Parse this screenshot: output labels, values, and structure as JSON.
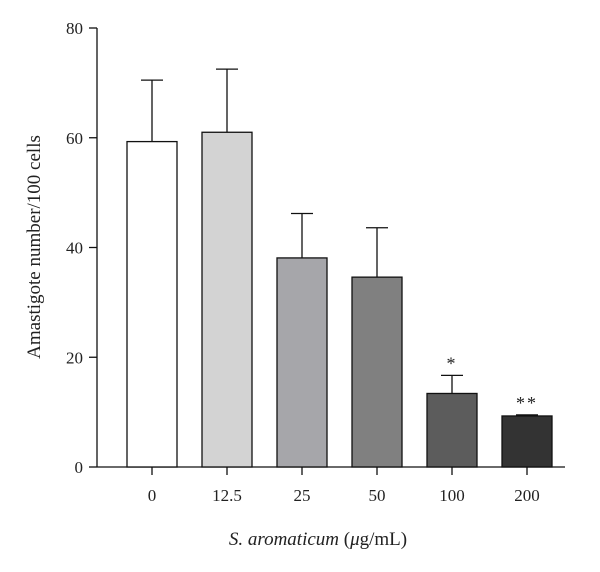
{
  "chart_data": {
    "type": "bar",
    "categories": [
      "0",
      "12.5",
      "25",
      "50",
      "100",
      "200"
    ],
    "values": [
      59.3,
      61.0,
      38.1,
      34.6,
      13.4,
      9.3
    ],
    "errors": [
      11.2,
      11.5,
      8.1,
      9.0,
      3.3,
      0.2
    ],
    "annotations": [
      "",
      "",
      "",
      "",
      "*",
      "**"
    ],
    "bar_colors": [
      "#ffffff",
      "#d3d3d3",
      "#a6a6aa",
      "#808080",
      "#5c5c5c",
      "#333333"
    ],
    "ylim": [
      0,
      80
    ],
    "yticks": [
      0,
      20,
      40,
      60,
      80
    ],
    "ylabel": "Amastigote number/100 cells",
    "xlabel_italic": "S. aromaticum",
    "xlabel_paren_open": " (",
    "xlabel_mu": "μ",
    "xlabel_unit": "g/mL)"
  }
}
